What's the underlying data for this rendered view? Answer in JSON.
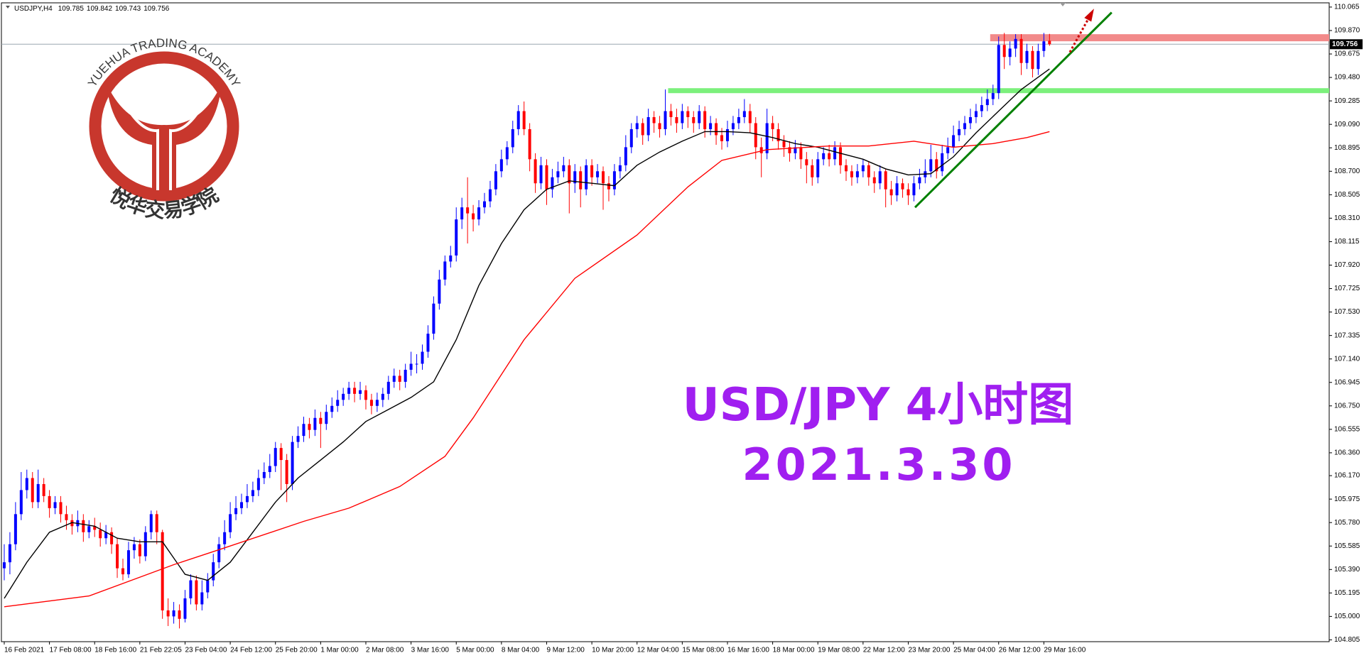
{
  "chart_data": {
    "type": "candlestick",
    "symbol": "USDJPY,H4",
    "title": "USD/JPY 4小时图",
    "subtitle": "2021.3.30",
    "logo": {
      "text": "YUEHUA TRADING ACADEMY",
      "chinese": "悦华交易学院"
    },
    "up_color": "#0000ff",
    "down_color": "#ff0000",
    "xlim": [
      -0.5,
      234.5
    ],
    "ylim": [
      104.79,
      110.1
    ],
    "xticks": [
      {
        "value": 0,
        "label": "16 Feb 2021"
      },
      {
        "value": 8,
        "label": "17 Feb 08:00"
      },
      {
        "value": 16,
        "label": "18 Feb 16:00"
      },
      {
        "value": 24,
        "label": "21 Feb 22:05"
      },
      {
        "value": 32,
        "label": "23 Feb 04:00"
      },
      {
        "value": 40,
        "label": "24 Feb 12:00"
      },
      {
        "value": 48,
        "label": "25 Feb 20:00"
      },
      {
        "value": 56,
        "label": "1 Mar 00:00"
      },
      {
        "value": 64,
        "label": "2 Mar 08:00"
      },
      {
        "value": 72,
        "label": "3 Mar 16:00"
      },
      {
        "value": 80,
        "label": "5 Mar 00:00"
      },
      {
        "value": 88,
        "label": "8 Mar 04:00"
      },
      {
        "value": 96,
        "label": "9 Mar 12:00"
      },
      {
        "value": 104,
        "label": "10 Mar 20:00"
      },
      {
        "value": 112,
        "label": "12 Mar 04:00"
      },
      {
        "value": 120,
        "label": "15 Mar 08:00"
      },
      {
        "value": 128,
        "label": "16 Mar 16:00"
      },
      {
        "value": 136,
        "label": "18 Mar 00:00"
      },
      {
        "value": 144,
        "label": "19 Mar 08:00"
      },
      {
        "value": 152,
        "label": "22 Mar 12:00"
      },
      {
        "value": 160,
        "label": "23 Mar 20:00"
      },
      {
        "value": 168,
        "label": "25 Mar 04:00"
      },
      {
        "value": 176,
        "label": "26 Mar 12:00"
      },
      {
        "value": 184,
        "label": "29 Mar 16:00"
      }
    ],
    "yticks": [
      110.065,
      {
        "value": 109.87,
        "label": "109.870"
      },
      109.675,
      {
        "value": 109.48,
        "label": "109.480"
      },
      109.285,
      {
        "value": 109.09,
        "label": "109.090"
      },
      108.895,
      {
        "value": 108.7,
        "label": "108.700"
      },
      108.505,
      {
        "value": 108.31,
        "label": "108.310"
      },
      108.115,
      {
        "value": 107.92,
        "label": "107.920"
      },
      107.725,
      {
        "value": 107.53,
        "label": "107.530"
      },
      107.335,
      {
        "value": 107.14,
        "label": "107.140"
      },
      106.945,
      {
        "value": 106.75,
        "label": "106.750"
      },
      106.555,
      {
        "value": 106.36,
        "label": "106.360"
      },
      {
        "value": 106.17,
        "label": "106.170"
      },
      105.975,
      {
        "value": 105.78,
        "label": "105.780"
      },
      105.585,
      {
        "value": 105.39,
        "label": "105.390"
      },
      105.195,
      {
        "value": 105,
        "label": "105.000"
      },
      104.805
    ],
    "open": [
      105.4,
      105.45,
      105.6,
      105.85,
      106.05,
      106.15,
      105.95,
      106.1,
      106.0,
      105.9,
      105.95,
      105.85,
      105.8,
      105.75,
      105.8,
      105.7,
      105.75,
      105.72,
      105.65,
      105.7,
      105.6,
      105.4,
      105.35,
      105.55,
      105.6,
      105.5,
      105.7,
      105.85,
      105.7,
      105.05,
      105.0,
      105.05,
      104.98,
      105.15,
      105.3,
      105.1,
      105.2,
      105.3,
      105.45,
      105.6,
      105.7,
      105.85,
      105.9,
      105.95,
      106.0,
      106.05,
      106.15,
      106.2,
      106.25,
      106.4,
      106.3,
      106.1,
      106.45,
      106.5,
      106.6,
      106.55,
      106.65,
      106.6,
      106.7,
      106.75,
      106.8,
      106.85,
      106.9,
      106.85,
      106.88,
      106.8,
      106.75,
      106.8,
      106.85,
      106.95,
      107.0,
      106.95,
      107.05,
      107.1,
      107.1,
      107.2,
      107.35,
      107.6,
      107.8,
      107.95,
      108.0,
      108.3,
      108.4,
      108.35,
      108.3,
      108.4,
      108.45,
      108.55,
      108.7,
      108.8,
      108.9,
      109.05,
      109.2,
      109.05,
      108.8,
      108.6,
      108.75,
      108.55,
      108.65,
      108.7,
      108.75,
      108.6,
      108.7,
      108.55,
      108.75,
      108.65,
      108.7,
      108.6,
      108.55,
      108.7,
      108.75,
      108.9,
      109.05,
      109.1,
      109.0,
      109.15,
      109.1,
      109.05,
      109.2,
      109.15,
      109.1,
      109.2,
      109.15,
      109.1,
      109.2,
      109.05,
      109.1,
      109.0,
      108.95,
      109.05,
      109.1,
      109.15,
      109.2,
      109.1,
      108.9,
      108.85,
      109.1,
      109.05,
      108.95,
      108.9,
      108.85,
      108.9,
      108.8,
      108.75,
      108.65,
      108.8,
      108.85,
      108.8,
      108.9,
      108.75,
      108.7,
      108.65,
      108.7,
      108.75,
      108.65,
      108.6,
      108.7,
      108.55,
      108.5,
      108.6,
      108.55,
      108.5,
      108.6,
      108.65,
      108.7,
      108.8,
      108.7,
      108.85,
      108.9,
      109.0,
      109.05,
      109.1,
      109.15,
      109.2,
      109.25,
      109.3,
      109.35,
      109.75,
      109.65,
      109.72,
      109.8,
      109.6,
      109.7,
      109.55,
      109.7,
      109.785
    ],
    "high": [
      105.6,
      105.7,
      105.95,
      106.2,
      106.22,
      106.2,
      106.22,
      106.15,
      106.05,
      106.0,
      106.0,
      105.92,
      105.85,
      105.88,
      105.85,
      105.8,
      105.82,
      105.78,
      105.76,
      105.74,
      105.65,
      105.48,
      105.62,
      105.66,
      105.64,
      105.75,
      105.88,
      105.88,
      105.72,
      105.15,
      105.12,
      105.1,
      105.22,
      105.35,
      105.34,
      105.3,
      105.36,
      105.52,
      105.66,
      105.8,
      105.95,
      106.0,
      106.02,
      106.1,
      106.12,
      106.22,
      106.28,
      106.35,
      106.45,
      106.44,
      106.35,
      106.5,
      106.58,
      106.66,
      106.65,
      106.72,
      106.7,
      106.76,
      106.82,
      106.88,
      106.9,
      106.95,
      106.95,
      106.95,
      106.92,
      106.85,
      106.86,
      106.9,
      107.0,
      107.06,
      107.05,
      107.1,
      107.2,
      107.18,
      107.26,
      107.42,
      107.66,
      107.88,
      108.0,
      108.08,
      108.4,
      108.48,
      108.65,
      108.42,
      108.46,
      108.52,
      108.62,
      108.76,
      108.88,
      108.95,
      109.12,
      109.25,
      109.28,
      109.1,
      108.85,
      108.82,
      108.8,
      108.72,
      108.78,
      108.82,
      108.8,
      108.76,
      108.74,
      108.8,
      108.8,
      108.76,
      108.74,
      108.66,
      108.76,
      108.82,
      109.0,
      109.1,
      109.16,
      109.14,
      109.22,
      109.2,
      109.16,
      109.38,
      109.26,
      109.22,
      109.26,
      109.24,
      109.2,
      109.25,
      109.24,
      109.16,
      109.14,
      109.06,
      109.12,
      109.16,
      109.22,
      109.3,
      109.26,
      109.15,
      108.98,
      109.22,
      109.16,
      109.1,
      109.0,
      108.95,
      108.96,
      108.94,
      108.86,
      108.8,
      108.86,
      108.9,
      108.92,
      108.95,
      108.94,
      108.8,
      108.75,
      108.76,
      108.8,
      108.78,
      108.7,
      108.75,
      108.72,
      108.62,
      108.66,
      108.64,
      108.6,
      108.66,
      108.72,
      108.8,
      108.92,
      108.86,
      108.92,
      108.98,
      109.08,
      109.12,
      109.16,
      109.22,
      109.26,
      109.32,
      109.38,
      109.42,
      109.82,
      109.85,
      109.78,
      109.84,
      109.84,
      109.76,
      109.74,
      109.76,
      109.85,
      109.842
    ],
    "low": [
      105.3,
      105.35,
      105.55,
      105.8,
      105.98,
      105.9,
      105.9,
      105.95,
      105.82,
      105.85,
      105.78,
      105.72,
      105.68,
      105.7,
      105.62,
      105.65,
      105.66,
      105.58,
      105.6,
      105.52,
      105.32,
      105.3,
      105.32,
      105.48,
      105.44,
      105.46,
      105.64,
      105.6,
      104.98,
      104.92,
      104.94,
      104.9,
      104.95,
      105.1,
      105.05,
      105.05,
      105.15,
      105.25,
      105.4,
      105.55,
      105.65,
      105.8,
      105.85,
      105.9,
      105.95,
      106.0,
      106.1,
      106.15,
      106.2,
      106.05,
      105.95,
      106.05,
      106.4,
      106.45,
      106.48,
      106.5,
      106.4,
      106.55,
      106.65,
      106.7,
      106.75,
      106.8,
      106.78,
      106.8,
      106.72,
      106.68,
      106.7,
      106.74,
      106.8,
      106.9,
      106.88,
      106.9,
      107.0,
      107.02,
      107.05,
      107.15,
      107.3,
      107.55,
      107.75,
      107.9,
      107.95,
      108.22,
      108.1,
      108.2,
      108.25,
      108.35,
      108.4,
      108.5,
      108.65,
      108.75,
      108.85,
      109.0,
      109.0,
      108.7,
      108.52,
      108.55,
      108.42,
      108.48,
      108.6,
      108.65,
      108.35,
      108.52,
      108.4,
      108.5,
      108.58,
      108.6,
      108.38,
      108.45,
      108.5,
      108.64,
      108.7,
      108.85,
      108.98,
      108.92,
      108.95,
      109.02,
      108.98,
      109.0,
      109.08,
      109.02,
      109.05,
      109.06,
      109.02,
      109.05,
      108.98,
      109.0,
      108.92,
      108.88,
      108.9,
      109.0,
      109.05,
      109.1,
      109.02,
      108.8,
      108.65,
      108.8,
      108.95,
      108.88,
      108.82,
      108.78,
      108.8,
      108.72,
      108.6,
      108.58,
      108.6,
      108.75,
      108.74,
      108.75,
      108.68,
      108.62,
      108.58,
      108.6,
      108.65,
      108.58,
      108.52,
      108.55,
      108.4,
      108.42,
      108.45,
      108.48,
      108.42,
      108.45,
      108.55,
      108.6,
      108.65,
      108.64,
      108.66,
      108.8,
      108.85,
      108.95,
      109.0,
      109.05,
      109.1,
      109.15,
      109.2,
      109.25,
      109.3,
      109.55,
      109.58,
      109.65,
      109.5,
      109.55,
      109.48,
      109.5,
      109.65,
      109.743
    ],
    "close": [
      105.45,
      105.6,
      105.85,
      106.05,
      106.15,
      105.95,
      106.1,
      106.0,
      105.9,
      105.95,
      105.85,
      105.8,
      105.75,
      105.8,
      105.7,
      105.75,
      105.72,
      105.65,
      105.7,
      105.6,
      105.4,
      105.35,
      105.55,
      105.6,
      105.5,
      105.7,
      105.85,
      105.7,
      105.05,
      105.0,
      105.05,
      104.98,
      105.15,
      105.3,
      105.1,
      105.2,
      105.3,
      105.45,
      105.6,
      105.7,
      105.85,
      105.9,
      105.95,
      106.0,
      106.05,
      106.15,
      106.2,
      106.25,
      106.4,
      106.3,
      106.1,
      106.45,
      106.5,
      106.6,
      106.55,
      106.65,
      106.6,
      106.7,
      106.75,
      106.8,
      106.85,
      106.9,
      106.85,
      106.88,
      106.8,
      106.75,
      106.8,
      106.85,
      106.95,
      107.0,
      106.95,
      107.05,
      107.1,
      107.1,
      107.2,
      107.35,
      107.6,
      107.8,
      107.95,
      108.0,
      108.3,
      108.4,
      108.35,
      108.3,
      108.4,
      108.45,
      108.55,
      108.7,
      108.8,
      108.9,
      109.05,
      109.2,
      109.05,
      108.8,
      108.6,
      108.75,
      108.55,
      108.65,
      108.7,
      108.75,
      108.6,
      108.7,
      108.55,
      108.75,
      108.65,
      108.7,
      108.6,
      108.55,
      108.7,
      108.75,
      108.9,
      109.05,
      109.1,
      109.0,
      109.15,
      109.1,
      109.05,
      109.2,
      109.15,
      109.1,
      109.2,
      109.15,
      109.1,
      109.2,
      109.05,
      109.1,
      109.0,
      108.95,
      109.05,
      109.1,
      109.15,
      109.2,
      109.1,
      108.9,
      108.85,
      109.1,
      109.05,
      108.95,
      108.9,
      108.85,
      108.9,
      108.8,
      108.75,
      108.65,
      108.8,
      108.85,
      108.8,
      108.9,
      108.75,
      108.7,
      108.65,
      108.7,
      108.75,
      108.65,
      108.6,
      108.7,
      108.55,
      108.5,
      108.6,
      108.55,
      108.5,
      108.6,
      108.65,
      108.7,
      108.8,
      108.7,
      108.85,
      108.9,
      109.0,
      109.05,
      109.1,
      109.15,
      109.2,
      109.25,
      109.3,
      109.35,
      109.75,
      109.65,
      109.72,
      109.8,
      109.6,
      109.7,
      109.55,
      109.7,
      109.78,
      109.756
    ],
    "lines": [
      {
        "color": "#000000",
        "x": [
          0,
          4,
          8,
          12,
          16,
          20,
          24,
          28,
          32,
          36,
          40,
          44,
          48,
          52,
          56,
          60,
          64,
          68,
          72,
          76,
          80,
          84,
          88,
          92,
          96,
          100,
          104,
          108,
          112,
          116,
          120,
          124,
          128,
          132,
          136,
          140,
          144,
          148,
          152,
          156,
          160,
          164,
          168,
          172,
          176,
          180,
          185
        ],
        "values": [
          105.15,
          105.45,
          105.7,
          105.78,
          105.75,
          105.65,
          105.62,
          105.62,
          105.35,
          105.3,
          105.45,
          105.7,
          105.95,
          106.15,
          106.3,
          106.45,
          106.62,
          106.72,
          106.82,
          106.95,
          107.3,
          107.75,
          108.1,
          108.38,
          108.55,
          108.62,
          108.6,
          108.58,
          108.75,
          108.86,
          108.95,
          109.03,
          109.03,
          109.02,
          108.98,
          108.93,
          108.9,
          108.85,
          108.8,
          108.72,
          108.67,
          108.68,
          108.82,
          109.02,
          109.2,
          109.38,
          109.55
        ]
      },
      {
        "color": "#ff0000",
        "x": [
          0,
          15,
          30,
          39,
          53,
          61,
          70,
          78,
          83,
          92,
          101,
          112,
          121,
          127,
          135,
          146,
          153,
          161,
          168,
          175,
          181,
          185
        ],
        "values": [
          105.08,
          105.17,
          105.43,
          105.57,
          105.79,
          105.9,
          106.08,
          106.33,
          106.65,
          107.3,
          107.81,
          108.17,
          108.57,
          108.79,
          108.88,
          108.91,
          108.91,
          108.95,
          108.9,
          108.93,
          108.98,
          109.03
        ]
      }
    ],
    "levels": [
      {
        "value": 109.81,
        "from": 174.5,
        "color": "#f28a8a"
      },
      {
        "value": 109.37,
        "from": 117.5,
        "color": "#7cf07c"
      }
    ],
    "trendline": {
      "x": [
        161.2,
        196
      ],
      "y": [
        108.4,
        110.02
      ],
      "color": "#008000"
    },
    "arrow": {
      "x": [
        188.6,
        192.5
      ],
      "y": [
        109.69,
        110.02
      ],
      "color": "#cc0000"
    }
  }
}
